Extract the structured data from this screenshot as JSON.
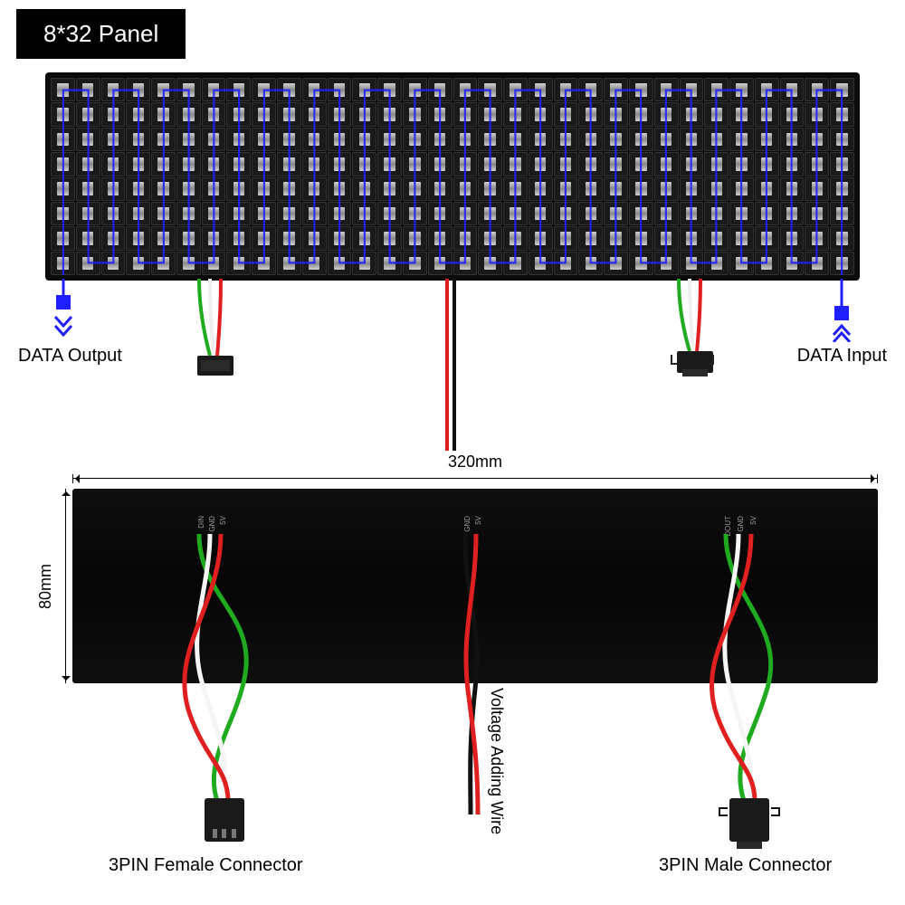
{
  "title": "8*32 Panel",
  "grid": {
    "rows": 8,
    "cols": 32
  },
  "top_view": {
    "data_output_label": "DATA Output",
    "data_input_label": "DATA Input",
    "serpentine_color": "#2020ff",
    "arrow_color": "#2020ff",
    "wire_colors": {
      "green": "#1faa1f",
      "white": "#f0f0f0",
      "red": "#e02020",
      "black": "#111111"
    }
  },
  "bottom_view": {
    "width_label": "320mm",
    "height_label": "80mm",
    "pin_labels_left": [
      "DIN",
      "GND",
      "5V"
    ],
    "pin_labels_center": [
      "GND",
      "5V"
    ],
    "pin_labels_right": [
      "DOUT",
      "GND",
      "5V"
    ],
    "female_connector_label": "3PIN Female Connector",
    "male_connector_label": "3PIN Male Connector",
    "voltage_wire_label": "Voltage Adding Wire"
  },
  "colors": {
    "panel_bg": "#0a0a0a",
    "back_bg": "#080808",
    "led_chip": "#c8c8c8",
    "wire_green": "#1faa1f",
    "wire_white": "#f5f5f5",
    "wire_red": "#e02020",
    "wire_black": "#111111",
    "text": "#000000",
    "title_bg": "#000000",
    "title_fg": "#ffffff"
  }
}
